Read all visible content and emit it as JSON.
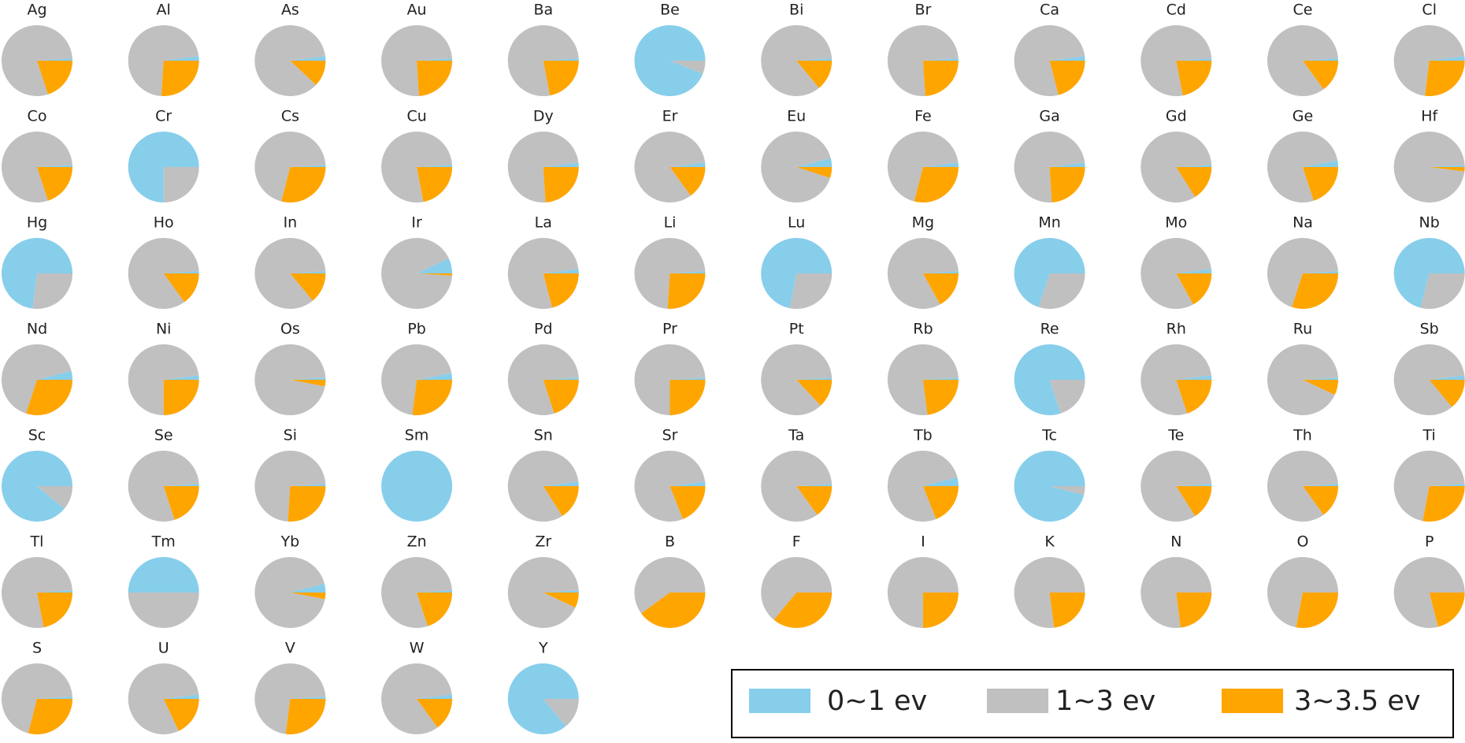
{
  "legend": {
    "labels": [
      "0~1 ev",
      "1~3 ev",
      "3~3.5 ev"
    ],
    "colors": [
      "#87ceeb",
      "#c0c0c0",
      "#ffa500"
    ],
    "position": "lower right"
  },
  "chart_data": [
    {
      "type": "pie",
      "title": "Ag",
      "values": [
        1,
        79,
        20
      ]
    },
    {
      "type": "pie",
      "title": "Al",
      "values": [
        2,
        72,
        26
      ]
    },
    {
      "type": "pie",
      "title": "As",
      "values": [
        2,
        86,
        12
      ]
    },
    {
      "type": "pie",
      "title": "Au",
      "values": [
        1,
        75,
        24
      ]
    },
    {
      "type": "pie",
      "title": "Ba",
      "values": [
        1,
        77,
        22
      ]
    },
    {
      "type": "pie",
      "title": "Be",
      "values": [
        94,
        6,
        0
      ]
    },
    {
      "type": "pie",
      "title": "Bi",
      "values": [
        1,
        85,
        14
      ]
    },
    {
      "type": "pie",
      "title": "Br",
      "values": [
        1,
        75,
        24
      ]
    },
    {
      "type": "pie",
      "title": "Ca",
      "values": [
        2,
        77,
        21
      ]
    },
    {
      "type": "pie",
      "title": "Cd",
      "values": [
        1,
        77,
        22
      ]
    },
    {
      "type": "pie",
      "title": "Ce",
      "values": [
        1,
        84,
        15
      ]
    },
    {
      "type": "pie",
      "title": "Cl",
      "values": [
        2,
        71,
        27
      ]
    },
    {
      "type": "pie",
      "title": "Co",
      "values": [
        1,
        79,
        20
      ]
    },
    {
      "type": "pie",
      "title": "Cr",
      "values": [
        75,
        25,
        0
      ]
    },
    {
      "type": "pie",
      "title": "Cs",
      "values": [
        1,
        70,
        29
      ]
    },
    {
      "type": "pie",
      "title": "Cu",
      "values": [
        1,
        77,
        22
      ]
    },
    {
      "type": "pie",
      "title": "Dy",
      "values": [
        2,
        74,
        24
      ]
    },
    {
      "type": "pie",
      "title": "Er",
      "values": [
        2,
        83,
        15
      ]
    },
    {
      "type": "pie",
      "title": "Eu",
      "values": [
        4,
        91,
        5
      ]
    },
    {
      "type": "pie",
      "title": "Fe",
      "values": [
        2,
        69,
        29
      ]
    },
    {
      "type": "pie",
      "title": "Ga",
      "values": [
        2,
        74,
        24
      ]
    },
    {
      "type": "pie",
      "title": "Gd",
      "values": [
        1,
        83,
        16
      ]
    },
    {
      "type": "pie",
      "title": "Ge",
      "values": [
        3,
        77,
        20
      ]
    },
    {
      "type": "pie",
      "title": "Hf",
      "values": [
        1,
        97,
        2
      ]
    },
    {
      "type": "pie",
      "title": "Hg",
      "values": [
        73,
        27,
        0
      ]
    },
    {
      "type": "pie",
      "title": "Ho",
      "values": [
        1,
        84,
        15
      ]
    },
    {
      "type": "pie",
      "title": "In",
      "values": [
        1,
        85,
        14
      ]
    },
    {
      "type": "pie",
      "title": "Ir",
      "values": [
        7,
        92,
        1
      ]
    },
    {
      "type": "pie",
      "title": "La",
      "values": [
        2,
        77,
        21
      ]
    },
    {
      "type": "pie",
      "title": "Li",
      "values": [
        1,
        73,
        26
      ]
    },
    {
      "type": "pie",
      "title": "Lu",
      "values": [
        72,
        28,
        0
      ]
    },
    {
      "type": "pie",
      "title": "Mg",
      "values": [
        1,
        82,
        17
      ]
    },
    {
      "type": "pie",
      "title": "Mn",
      "values": [
        70,
        30,
        0
      ]
    },
    {
      "type": "pie",
      "title": "Mo",
      "values": [
        2,
        81,
        17
      ]
    },
    {
      "type": "pie",
      "title": "Na",
      "values": [
        1,
        69,
        30
      ]
    },
    {
      "type": "pie",
      "title": "Nb",
      "values": [
        71,
        29,
        0
      ]
    },
    {
      "type": "pie",
      "title": "Nd",
      "values": [
        4,
        66,
        30
      ]
    },
    {
      "type": "pie",
      "title": "Ni",
      "values": [
        2,
        73,
        25
      ]
    },
    {
      "type": "pie",
      "title": "Os",
      "values": [
        1,
        96,
        3
      ]
    },
    {
      "type": "pie",
      "title": "Pb",
      "values": [
        3,
        70,
        27
      ]
    },
    {
      "type": "pie",
      "title": "Pd",
      "values": [
        1,
        79,
        20
      ]
    },
    {
      "type": "pie",
      "title": "Pr",
      "values": [
        1,
        74,
        25
      ]
    },
    {
      "type": "pie",
      "title": "Pt",
      "values": [
        1,
        86,
        13
      ]
    },
    {
      "type": "pie",
      "title": "Rb",
      "values": [
        1,
        76,
        23
      ]
    },
    {
      "type": "pie",
      "title": "Re",
      "values": [
        80,
        20,
        0
      ]
    },
    {
      "type": "pie",
      "title": "Rh",
      "values": [
        2,
        78,
        20
      ]
    },
    {
      "type": "pie",
      "title": "Ru",
      "values": [
        1,
        92,
        7
      ]
    },
    {
      "type": "pie",
      "title": "Sb",
      "values": [
        2,
        84,
        14
      ]
    },
    {
      "type": "pie",
      "title": "Sc",
      "values": [
        89,
        11,
        0
      ]
    },
    {
      "type": "pie",
      "title": "Se",
      "values": [
        1,
        79,
        20
      ]
    },
    {
      "type": "pie",
      "title": "Si",
      "values": [
        1,
        73,
        26
      ]
    },
    {
      "type": "pie",
      "title": "Sm",
      "values": [
        100,
        0,
        0
      ]
    },
    {
      "type": "pie",
      "title": "Sn",
      "values": [
        2,
        82,
        16
      ]
    },
    {
      "type": "pie",
      "title": "Sr",
      "values": [
        2,
        79,
        19
      ]
    },
    {
      "type": "pie",
      "title": "Ta",
      "values": [
        1,
        84,
        15
      ]
    },
    {
      "type": "pie",
      "title": "Tb",
      "values": [
        4,
        77,
        19
      ]
    },
    {
      "type": "pie",
      "title": "Tc",
      "values": [
        96,
        4,
        0
      ]
    },
    {
      "type": "pie",
      "title": "Te",
      "values": [
        1,
        83,
        16
      ]
    },
    {
      "type": "pie",
      "title": "Th",
      "values": [
        1,
        84,
        15
      ]
    },
    {
      "type": "pie",
      "title": "Ti",
      "values": [
        1,
        71,
        28
      ]
    },
    {
      "type": "pie",
      "title": "Tl",
      "values": [
        1,
        77,
        22
      ]
    },
    {
      "type": "pie",
      "title": "Tm",
      "values": [
        50,
        50,
        0
      ]
    },
    {
      "type": "pie",
      "title": "Yb",
      "values": [
        4,
        93,
        3
      ]
    },
    {
      "type": "pie",
      "title": "Zn",
      "values": [
        1,
        79,
        20
      ]
    },
    {
      "type": "pie",
      "title": "Zr",
      "values": [
        1,
        92,
        7
      ]
    },
    {
      "type": "pie",
      "title": "B",
      "values": [
        0,
        60,
        40
      ]
    },
    {
      "type": "pie",
      "title": "F",
      "values": [
        0,
        64,
        36
      ]
    },
    {
      "type": "pie",
      "title": "I",
      "values": [
        0,
        75,
        25
      ]
    },
    {
      "type": "pie",
      "title": "K",
      "values": [
        0,
        77,
        23
      ]
    },
    {
      "type": "pie",
      "title": "N",
      "values": [
        0,
        77,
        23
      ]
    },
    {
      "type": "pie",
      "title": "O",
      "values": [
        0,
        72,
        28
      ]
    },
    {
      "type": "pie",
      "title": "P",
      "values": [
        0,
        79,
        21
      ]
    },
    {
      "type": "pie",
      "title": "S",
      "values": [
        1,
        70,
        29
      ]
    },
    {
      "type": "pie",
      "title": "U",
      "values": [
        2,
        80,
        18
      ]
    },
    {
      "type": "pie",
      "title": "V",
      "values": [
        1,
        72,
        27
      ]
    },
    {
      "type": "pie",
      "title": "W",
      "values": [
        2,
        83,
        15
      ]
    },
    {
      "type": "pie",
      "title": "Y",
      "values": [
        86,
        14,
        0
      ]
    }
  ]
}
